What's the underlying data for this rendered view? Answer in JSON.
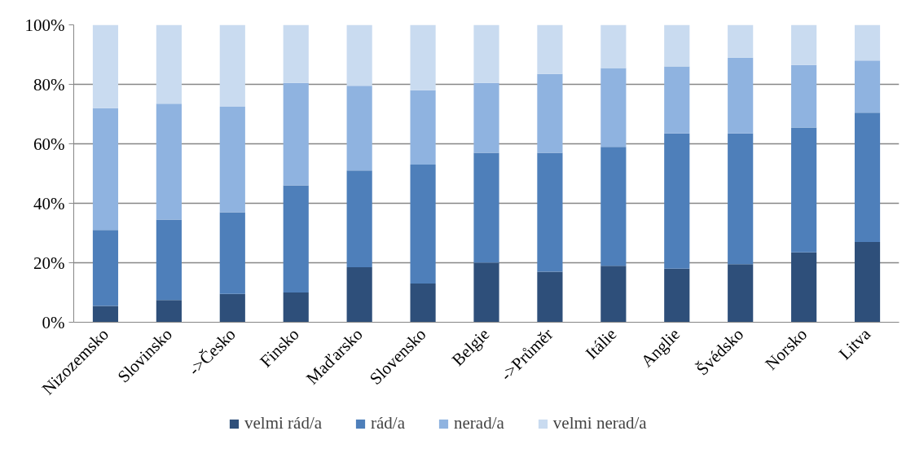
{
  "chart_data": {
    "type": "bar",
    "stacked": true,
    "categories": [
      "Nizozemsko",
      "Slovinsko",
      "->Česko",
      "Finsko",
      "Maďarsko",
      "Slovensko",
      "Belgie",
      "->Průměr",
      "Itálie",
      "Anglie",
      "Švédsko",
      "Norsko",
      "Litva"
    ],
    "series": [
      {
        "name": "velmi rád/a",
        "color": "#2e4f7a",
        "values": [
          5.5,
          7.5,
          9.5,
          10,
          18.5,
          13,
          20,
          17,
          19,
          18,
          19.5,
          23.5,
          27
        ]
      },
      {
        "name": "rád/a",
        "color": "#4e7fba",
        "values": [
          25.5,
          27,
          27.5,
          36,
          32.5,
          40,
          37,
          40,
          40,
          45.5,
          44,
          42,
          43.5
        ]
      },
      {
        "name": "nerad/a",
        "color": "#8fb3e0",
        "values": [
          41,
          39,
          35.5,
          34.5,
          28.5,
          25,
          23.5,
          26.5,
          26.5,
          22.5,
          25.5,
          21,
          17.5
        ]
      },
      {
        "name": "velmi nerad/a",
        "color": "#c9dbf0",
        "values": [
          28,
          26.5,
          27.5,
          19.5,
          20.5,
          22,
          19.5,
          16.5,
          14.5,
          14,
          11,
          13.5,
          12
        ]
      }
    ],
    "ylim": [
      0,
      100
    ],
    "yticks": [
      {
        "value": 0,
        "label": "0%"
      },
      {
        "value": 20,
        "label": "20%"
      },
      {
        "value": 40,
        "label": "40%"
      },
      {
        "value": 60,
        "label": "60%"
      },
      {
        "value": 80,
        "label": "80%"
      },
      {
        "value": 100,
        "label": "100%"
      }
    ],
    "grid": "y",
    "legend": "bottom"
  }
}
